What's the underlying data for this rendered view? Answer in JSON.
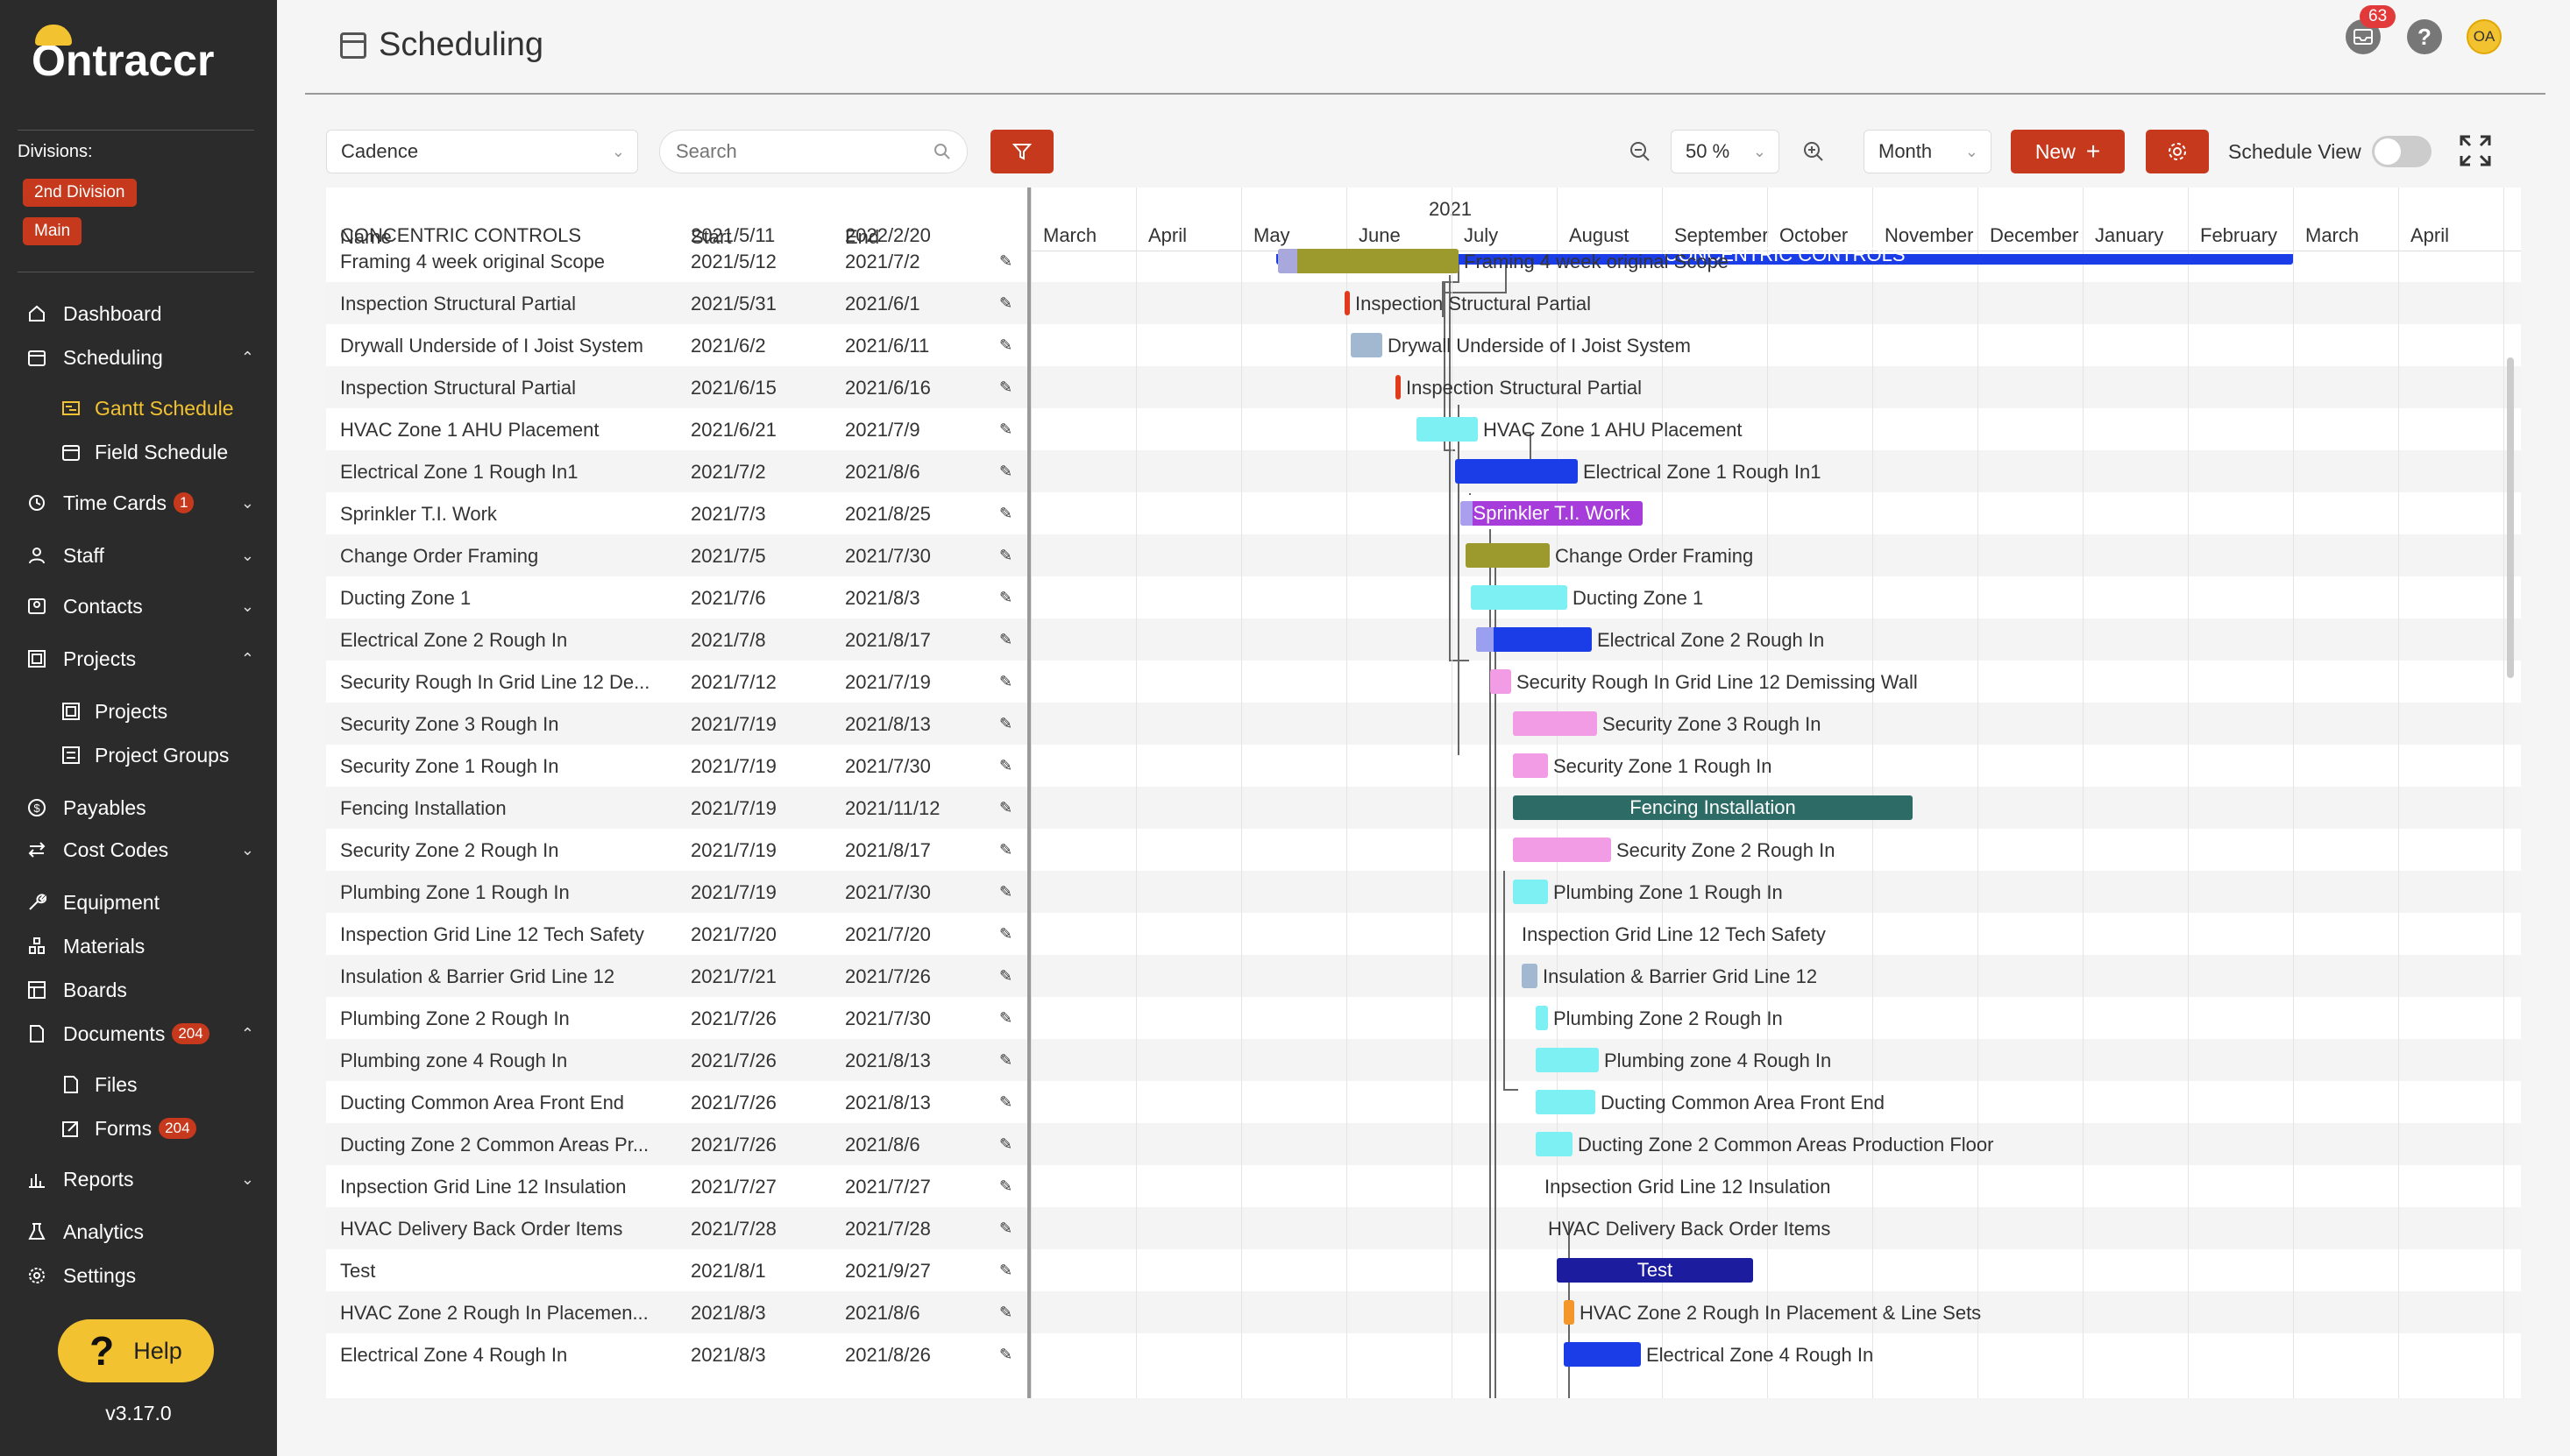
{
  "app": {
    "logo_text": "Ontraccr",
    "version": "v3.17.0",
    "help_label": "Help"
  },
  "sidebar": {
    "divisions_title": "Divisions:",
    "divisions": [
      "2nd Division",
      "Main"
    ],
    "items": [
      {
        "label": "Dashboard",
        "icon": "home-icon"
      },
      {
        "label": "Scheduling",
        "icon": "calendar-icon",
        "chevron": "up"
      },
      {
        "label": "Gantt Schedule",
        "icon": "gantt-icon",
        "sub": true,
        "active": true
      },
      {
        "label": "Field Schedule",
        "icon": "calendar-icon",
        "sub": true
      },
      {
        "label": "Time Cards",
        "icon": "clock-icon",
        "badge": "1",
        "chevron": "down"
      },
      {
        "label": "Staff",
        "icon": "user-icon",
        "chevron": "down"
      },
      {
        "label": "Contacts",
        "icon": "contacts-icon",
        "chevron": "down"
      },
      {
        "label": "Projects",
        "icon": "projects-icon",
        "chevron": "up"
      },
      {
        "label": "Projects",
        "icon": "projects-icon",
        "sub": true
      },
      {
        "label": "Project Groups",
        "icon": "project-groups-icon",
        "sub": true
      },
      {
        "label": "Payables",
        "icon": "dollar-icon"
      },
      {
        "label": "Cost Codes",
        "icon": "swap-icon",
        "chevron": "down"
      },
      {
        "label": "Equipment",
        "icon": "tool-icon"
      },
      {
        "label": "Materials",
        "icon": "materials-icon"
      },
      {
        "label": "Boards",
        "icon": "board-icon"
      },
      {
        "label": "Documents",
        "icon": "document-icon",
        "badge": "204",
        "chevron": "up"
      },
      {
        "label": "Files",
        "icon": "file-icon",
        "sub": true
      },
      {
        "label": "Forms",
        "icon": "form-icon",
        "sub": true,
        "badge": "204"
      },
      {
        "label": "Reports",
        "icon": "chart-icon",
        "chevron": "down"
      },
      {
        "label": "Analytics",
        "icon": "flask-icon"
      },
      {
        "label": "Settings",
        "icon": "gear-icon"
      }
    ]
  },
  "header": {
    "title": "Scheduling",
    "notification_count": "63",
    "avatar_initials": "OA"
  },
  "toolbar": {
    "project_select": "Cadence",
    "search_placeholder": "Search",
    "zoom_value": "50 %",
    "view_select": "Month",
    "new_label": "New",
    "schedule_view_label": "Schedule View",
    "schedule_view_on": false
  },
  "table": {
    "columns": [
      "Name",
      "Start",
      "End"
    ],
    "partial_top_row": {
      "name": "CONCENTRIC CONTROLS",
      "start": "2021/5/11",
      "end": "2022/2/20"
    },
    "rows": [
      {
        "name": "Framing 4 week original Scope",
        "start": "2021/5/12",
        "end": "2021/7/2"
      },
      {
        "name": "Inspection Structural Partial",
        "start": "2021/5/31",
        "end": "2021/6/1"
      },
      {
        "name": "Drywall Underside of I Joist System",
        "start": "2021/6/2",
        "end": "2021/6/11"
      },
      {
        "name": "Inspection Structural Partial",
        "start": "2021/6/15",
        "end": "2021/6/16"
      },
      {
        "name": "HVAC Zone 1 AHU Placement",
        "start": "2021/6/21",
        "end": "2021/7/9"
      },
      {
        "name": "Electrical Zone 1 Rough In1",
        "start": "2021/7/2",
        "end": "2021/8/6"
      },
      {
        "name": "Sprinkler T.I. Work",
        "start": "2021/7/3",
        "end": "2021/8/25"
      },
      {
        "name": "Change Order Framing",
        "start": "2021/7/5",
        "end": "2021/7/30"
      },
      {
        "name": "Ducting Zone 1",
        "start": "2021/7/6",
        "end": "2021/8/3"
      },
      {
        "name": "Electrical Zone 2 Rough In",
        "start": "2021/7/8",
        "end": "2021/8/17"
      },
      {
        "name": "Security Rough In Grid Line 12 De...",
        "start": "2021/7/12",
        "end": "2021/7/19"
      },
      {
        "name": "Security Zone 3 Rough In",
        "start": "2021/7/19",
        "end": "2021/8/13"
      },
      {
        "name": "Security Zone 1 Rough In",
        "start": "2021/7/19",
        "end": "2021/7/30"
      },
      {
        "name": "Fencing Installation",
        "start": "2021/7/19",
        "end": "2021/11/12"
      },
      {
        "name": "Security Zone 2 Rough In",
        "start": "2021/7/19",
        "end": "2021/8/17"
      },
      {
        "name": "Plumbing Zone 1 Rough In",
        "start": "2021/7/19",
        "end": "2021/7/30"
      },
      {
        "name": "Inspection Grid Line 12 Tech Safety",
        "start": "2021/7/20",
        "end": "2021/7/20"
      },
      {
        "name": "Insulation & Barrier Grid Line 12",
        "start": "2021/7/21",
        "end": "2021/7/26"
      },
      {
        "name": "Plumbing Zone 2 Rough In",
        "start": "2021/7/26",
        "end": "2021/7/30"
      },
      {
        "name": "Plumbing zone 4 Rough In",
        "start": "2021/7/26",
        "end": "2021/8/13"
      },
      {
        "name": "Ducting Common Area Front End",
        "start": "2021/7/26",
        "end": "2021/8/13"
      },
      {
        "name": "Ducting Zone 2 Common Areas Pr...",
        "start": "2021/7/26",
        "end": "2021/8/6"
      },
      {
        "name": "Inpsection Grid Line 12 Insulation",
        "start": "2021/7/27",
        "end": "2021/7/27"
      },
      {
        "name": "HVAC Delivery Back Order Items",
        "start": "2021/7/28",
        "end": "2021/7/28"
      },
      {
        "name": "Test",
        "start": "2021/8/1",
        "end": "2021/9/27"
      },
      {
        "name": "HVAC Zone 2 Rough In Placemen...",
        "start": "2021/8/3",
        "end": "2021/8/6"
      },
      {
        "name": "Electrical Zone 4 Rough In",
        "start": "2021/8/3",
        "end": "2021/8/26"
      }
    ]
  },
  "gantt": {
    "year_label": "2021",
    "months": [
      "March",
      "April",
      "May",
      "June",
      "July",
      "August",
      "September",
      "October",
      "November",
      "December",
      "January",
      "February",
      "March",
      "April"
    ],
    "top_bar_label": "CONCENTRIC CONTROLS",
    "bars": [
      {
        "label": "Framing 4 week original Scope",
        "color": "#9c9a2c",
        "inside": false
      },
      {
        "label": "Inspection Structural Partial",
        "color": "#e23a1c",
        "inside": false
      },
      {
        "label": "Drywall Underside of I Joist System",
        "color": "#a2b8d0",
        "inside": false
      },
      {
        "label": "Inspection Structural Partial",
        "color": "#e23a1c",
        "inside": false
      },
      {
        "label": "HVAC Zone 1 AHU Placement",
        "color": "#7df0f4",
        "inside": false
      },
      {
        "label": "Electrical Zone 1 Rough In1",
        "color": "#1a3de8",
        "inside": false
      },
      {
        "label": "Sprinkler T.I. Work",
        "color": "#a63cd9",
        "inside": true
      },
      {
        "label": "Change Order Framing",
        "color": "#9c9a2c",
        "inside": false
      },
      {
        "label": "Ducting Zone 1",
        "color": "#7df0f4",
        "inside": false
      },
      {
        "label": "Electrical Zone 2 Rough In",
        "color": "#1a3de8",
        "inside": false
      },
      {
        "label": "Security Rough In Grid Line 12 Demissing Wall",
        "color": "#f29ce6",
        "inside": false
      },
      {
        "label": "Security Zone 3 Rough In",
        "color": "#f29ce6",
        "inside": false
      },
      {
        "label": "Security Zone 1 Rough In",
        "color": "#f29ce6",
        "inside": false
      },
      {
        "label": "Fencing Installation",
        "color": "#2d6b66",
        "inside": true
      },
      {
        "label": "Security Zone 2 Rough In",
        "color": "#f29ce6",
        "inside": false
      },
      {
        "label": "Plumbing Zone 1 Rough In",
        "color": "#7df0f4",
        "inside": false
      },
      {
        "label": "Inspection Grid Line 12 Tech Safety",
        "color": "",
        "inside": false
      },
      {
        "label": "Insulation & Barrier Grid Line 12",
        "color": "#a2b8d0",
        "inside": false
      },
      {
        "label": "Plumbing Zone 2 Rough In",
        "color": "#7df0f4",
        "inside": false
      },
      {
        "label": "Plumbing zone 4 Rough In",
        "color": "#7df0f4",
        "inside": false
      },
      {
        "label": "Ducting Common Area Front End",
        "color": "#7df0f4",
        "inside": false
      },
      {
        "label": "Ducting Zone 2 Common Areas Production Floor",
        "color": "#7df0f4",
        "inside": false
      },
      {
        "label": "Inpsection Grid Line 12 Insulation",
        "color": "",
        "inside": false
      },
      {
        "label": "HVAC Delivery Back Order Items",
        "color": "",
        "inside": false
      },
      {
        "label": "Test",
        "color": "#1c1c9e",
        "inside": true
      },
      {
        "label": "HVAC Zone 2 Rough In Placement & Line Sets",
        "color": "#f5962a",
        "inside": false
      },
      {
        "label": "Electrical Zone 4 Rough In",
        "color": "#1a3de8",
        "inside": false
      }
    ]
  }
}
